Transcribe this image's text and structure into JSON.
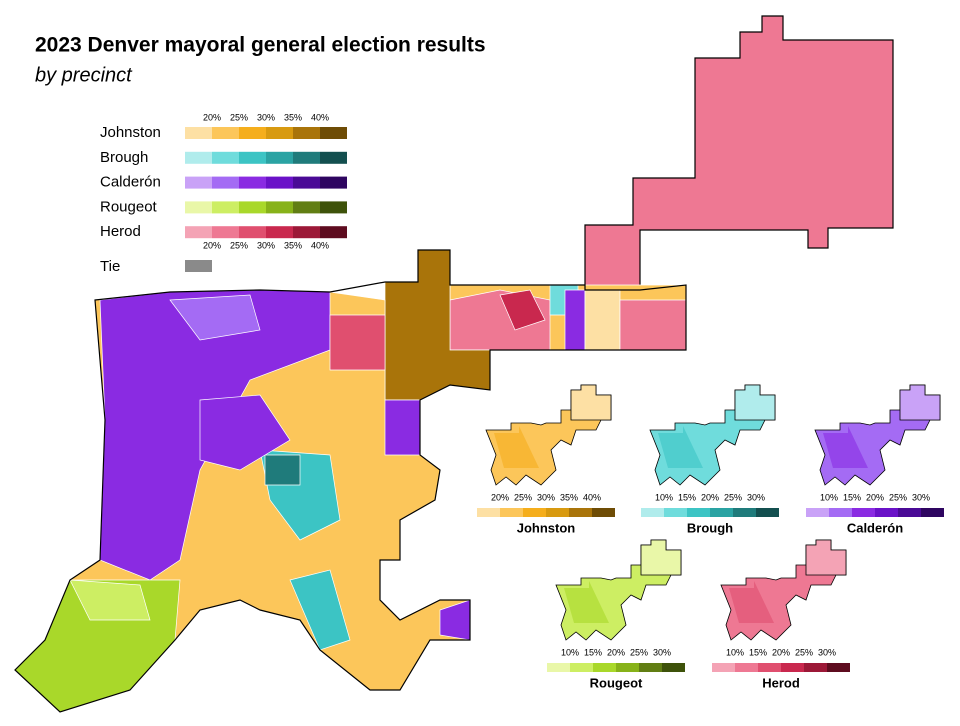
{
  "title": "2023 Denver mayoral general election results",
  "subtitle": "by precinct",
  "legend": {
    "top_ticks": [
      "20%",
      "25%",
      "30%",
      "35%",
      "40%"
    ],
    "bottom_ticks": [
      "20%",
      "25%",
      "30%",
      "35%",
      "40%"
    ],
    "candidates": [
      {
        "name": "Johnston",
        "colors": [
          "#fde0a4",
          "#fcc65a",
          "#f5ae1c",
          "#d89a10",
          "#a9740a",
          "#6e4c05"
        ]
      },
      {
        "name": "Brough",
        "colors": [
          "#b0ecec",
          "#6fdcdc",
          "#3cc4c4",
          "#2aa3a3",
          "#1f7b7b",
          "#134f4f"
        ]
      },
      {
        "name": "Calderón",
        "colors": [
          "#c9a2f7",
          "#a46bf4",
          "#8a2be2",
          "#6a12c8",
          "#4a0a96",
          "#2e0560"
        ]
      },
      {
        "name": "Rougeot",
        "colors": [
          "#e9f7a8",
          "#cdee63",
          "#a9d82a",
          "#87b219",
          "#617e13",
          "#3e520a"
        ]
      },
      {
        "name": "Herod",
        "colors": [
          "#f4a3b5",
          "#ee7893",
          "#e04f6f",
          "#c9284e",
          "#9c1837",
          "#5e0c1f"
        ]
      }
    ],
    "tie": {
      "name": "Tie",
      "color": "#8a8a8a"
    }
  },
  "small_maps": [
    {
      "name": "Johnston",
      "ticks": [
        "20%",
        "25%",
        "30%",
        "35%",
        "40%"
      ],
      "colors": [
        "#fde0a4",
        "#fcc65a",
        "#f5ae1c",
        "#d89a10",
        "#a9740a",
        "#6e4c05"
      ]
    },
    {
      "name": "Brough",
      "ticks": [
        "10%",
        "15%",
        "20%",
        "25%",
        "30%"
      ],
      "colors": [
        "#b0ecec",
        "#6fdcdc",
        "#3cc4c4",
        "#2aa3a3",
        "#1f7b7b",
        "#134f4f"
      ]
    },
    {
      "name": "Calderón",
      "ticks": [
        "10%",
        "15%",
        "20%",
        "25%",
        "30%"
      ],
      "colors": [
        "#c9a2f7",
        "#a46bf4",
        "#8a2be2",
        "#6a12c8",
        "#4a0a96",
        "#2e0560"
      ]
    },
    {
      "name": "Rougeot",
      "ticks": [
        "10%",
        "15%",
        "20%",
        "25%",
        "30%"
      ],
      "colors": [
        "#e9f7a8",
        "#cdee63",
        "#a9d82a",
        "#87b219",
        "#617e13",
        "#3e520a"
      ]
    },
    {
      "name": "Herod",
      "ticks": [
        "10%",
        "15%",
        "20%",
        "25%",
        "30%"
      ],
      "colors": [
        "#f4a3b5",
        "#ee7893",
        "#e04f6f",
        "#c9284e",
        "#9c1837",
        "#5e0c1f"
      ]
    }
  ]
}
